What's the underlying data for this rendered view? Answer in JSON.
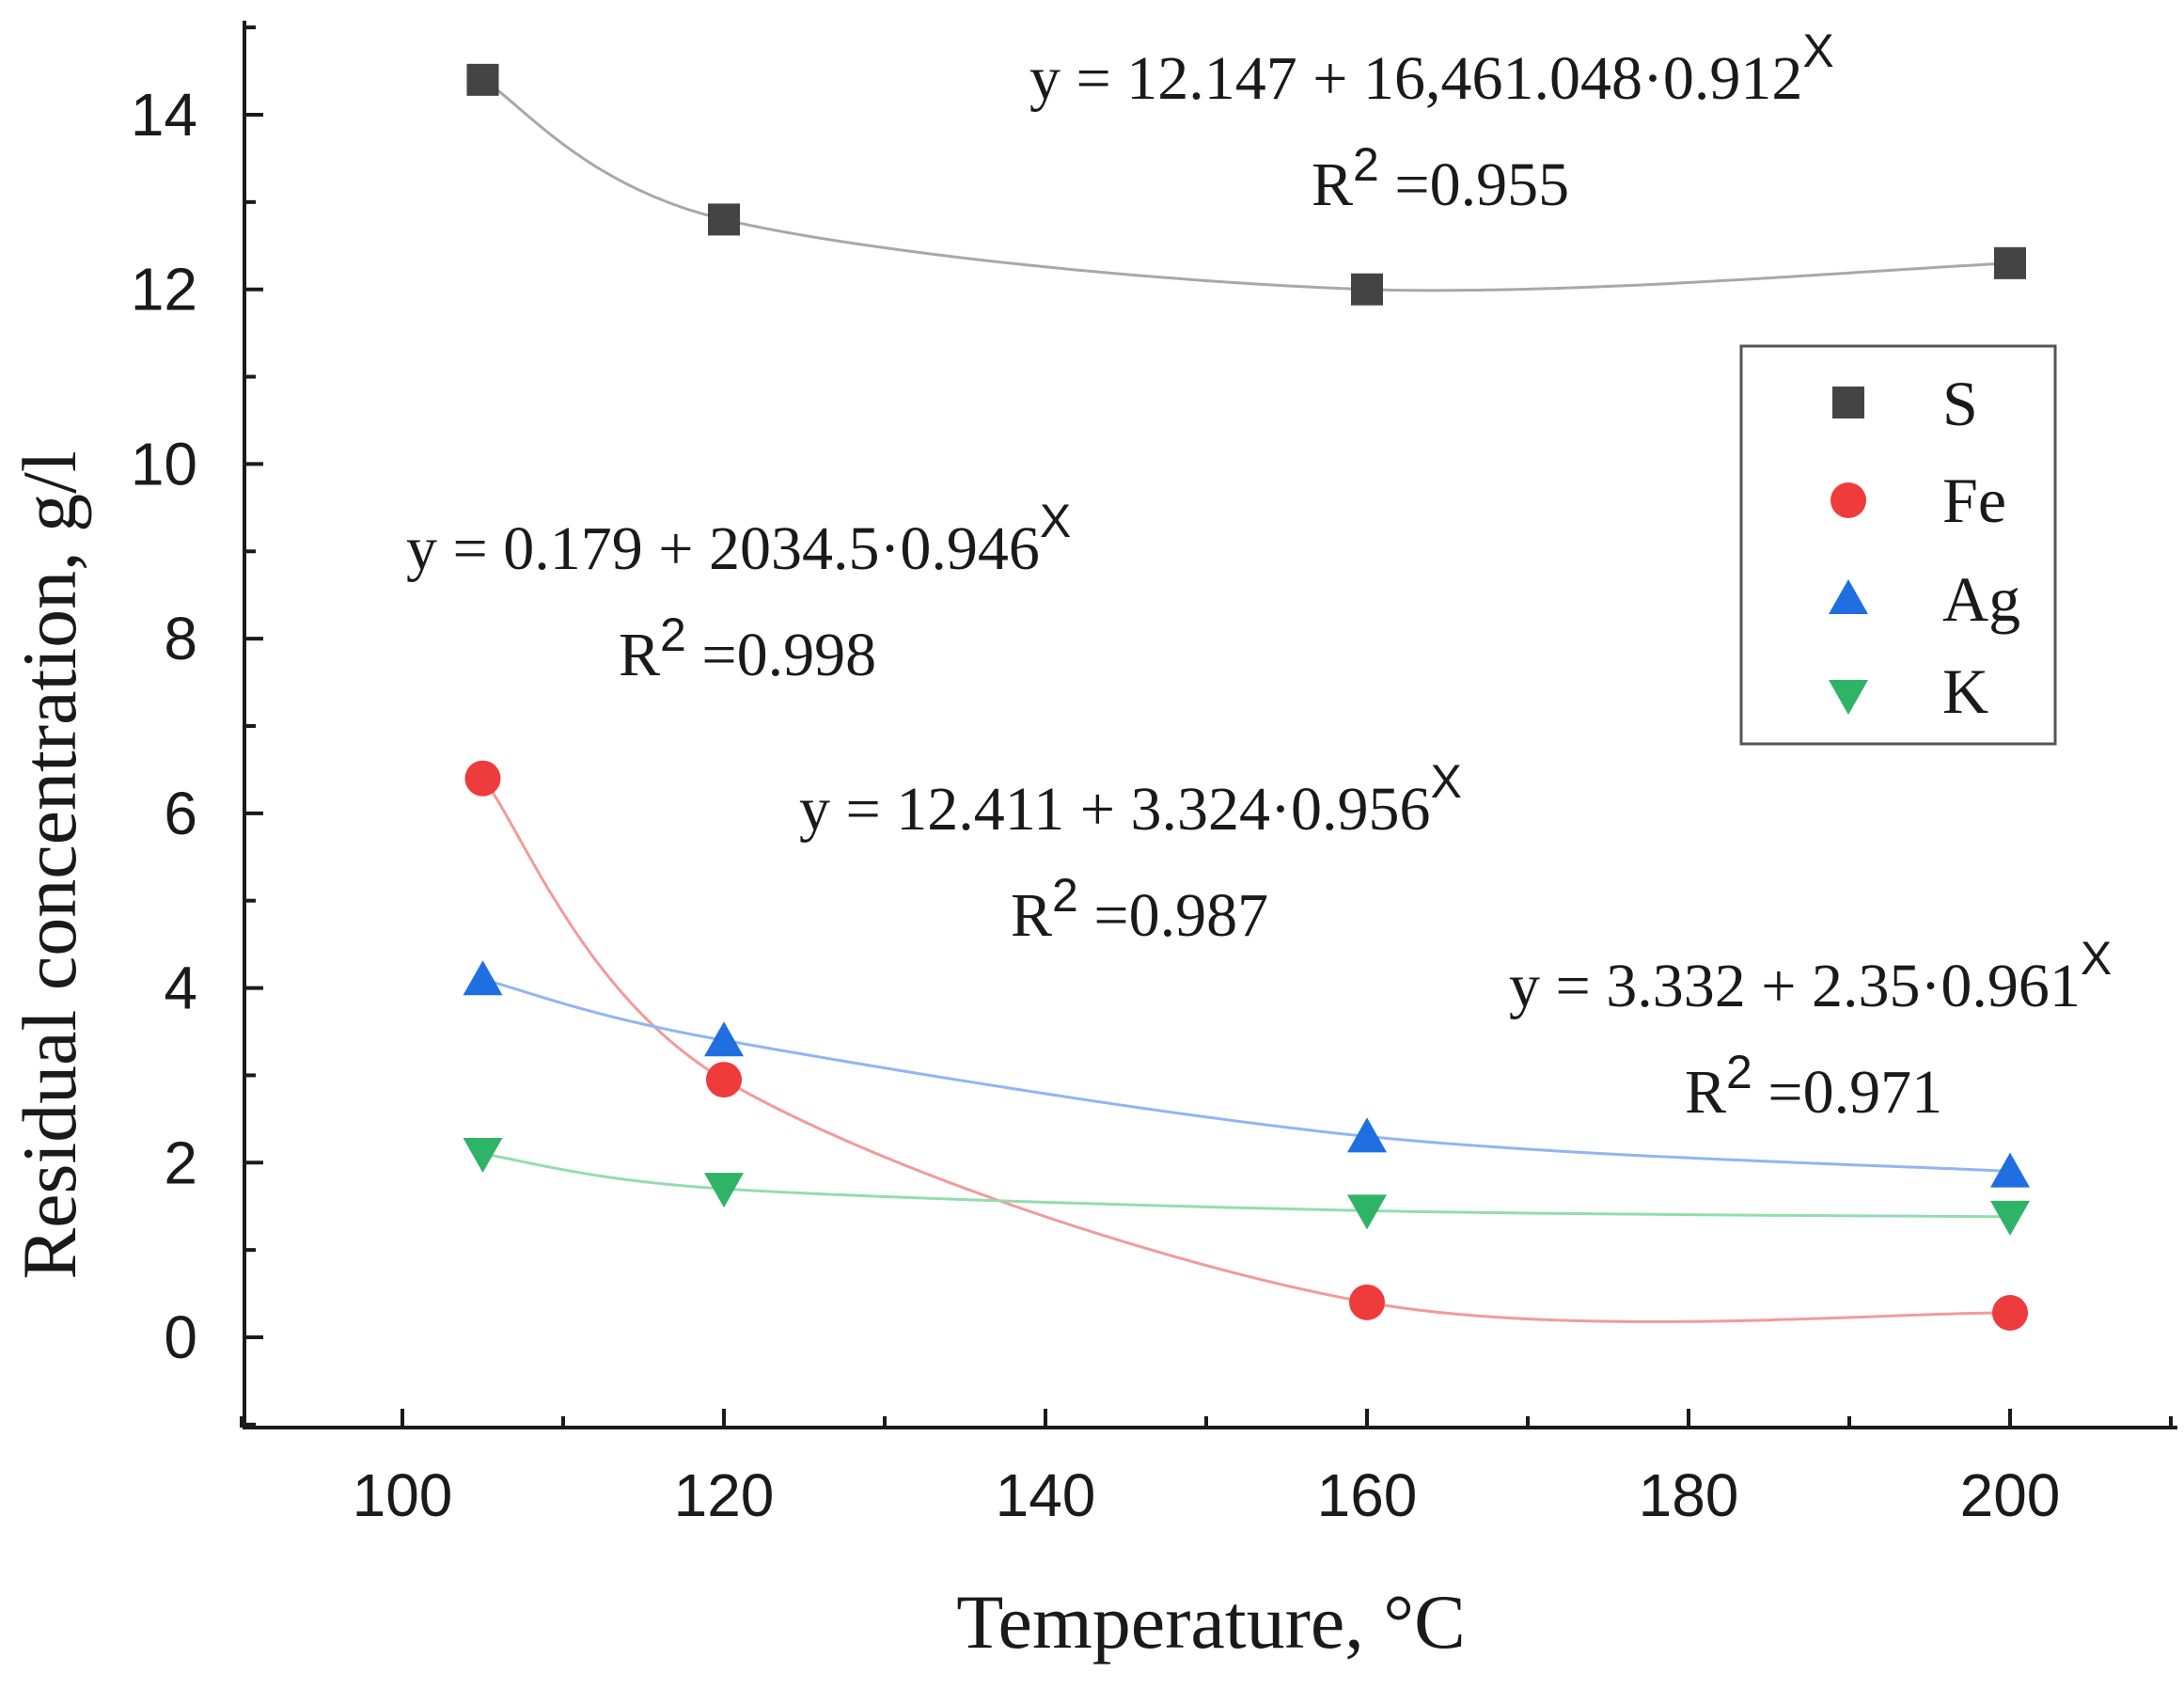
{
  "chart_data": {
    "type": "scatter",
    "title": "",
    "xlabel": "Temperature, °C",
    "ylabel": "Residual concentration, g/l",
    "xlim": [
      90,
      210
    ],
    "ylim": [
      -1,
      15
    ],
    "x_ticks": [
      100,
      120,
      140,
      160,
      180,
      200
    ],
    "y_ticks": [
      0,
      2,
      4,
      6,
      8,
      10,
      12,
      14
    ],
    "grid": false,
    "legend_position": "right",
    "x": [
      105,
      120,
      160,
      200
    ],
    "series": [
      {
        "name": "S",
        "marker": "square",
        "color": "#444444",
        "line_color": "#a8a8a8",
        "values": [
          14.4,
          12.8,
          12.0,
          12.3
        ],
        "fit": {
          "a": 12.147,
          "b": 16461.048,
          "c": 0.912
        },
        "equation": "y = 12.147 + 16,461.048·0.912",
        "exponent": "X",
        "r2_label": "R",
        "r2_sup": "2",
        "r2_value": " =0.955"
      },
      {
        "name": "Fe",
        "marker": "circle",
        "color": "#ee3b3b",
        "line_color": "#f39a9a",
        "values": [
          6.4,
          2.95,
          0.4,
          0.28
        ],
        "fit": {
          "a": 0.179,
          "b": 2034.5,
          "c": 0.946
        },
        "equation": "y = 0.179 + 2034.5·0.946",
        "exponent": "X",
        "r2_label": "R",
        "r2_sup": "2",
        "r2_value": " =0.998"
      },
      {
        "name": "Ag",
        "marker": "triangle-up",
        "color": "#1f6fe0",
        "line_color": "#8fb6f2",
        "values": [
          4.1,
          3.4,
          2.3,
          1.9
        ],
        "fit": {
          "a": 12.411,
          "b": 3.324,
          "c": 0.956
        },
        "equation": "y = 12.411 + 3.324·0.956",
        "exponent": "X",
        "r2_label": "R",
        "r2_sup": "2",
        "r2_value": " =0.987"
      },
      {
        "name": "K",
        "marker": "triangle-down",
        "color": "#2fb366",
        "line_color": "#94dcb0",
        "values": [
          2.1,
          1.7,
          1.45,
          1.38
        ],
        "fit": {
          "a": 3.332,
          "b": 2.35,
          "c": 0.961
        },
        "equation": "y = 3.332 + 2.35·0.961",
        "exponent": "X",
        "r2_label": "R",
        "r2_sup": "2",
        "r2_value": " =0.971"
      }
    ]
  }
}
